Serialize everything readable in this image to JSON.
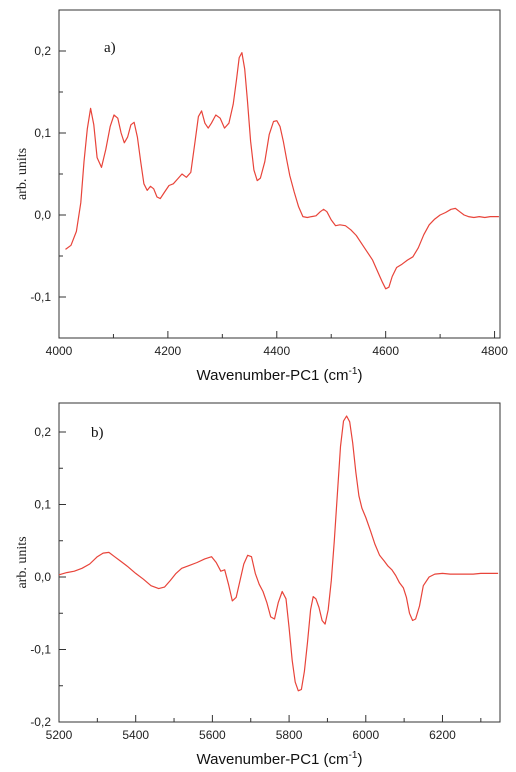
{
  "chart_data": [
    {
      "type": "line",
      "panel_label": "a)",
      "xlabel": "Wavenumber-PC1 (cm",
      "xlabel_sup": "-1",
      "xlabel_suffix": ")",
      "ylabel": "arb. units",
      "xlim": [
        4000,
        4810
      ],
      "ylim": [
        -0.15,
        0.25
      ],
      "xticks": [
        4000,
        4200,
        4400,
        4600,
        4800
      ],
      "yticks": [
        -0.1,
        0.0,
        0.1,
        0.2
      ],
      "ytick_labels": [
        "-0,1",
        "0,0",
        "0,1",
        "0,2"
      ],
      "grid": false,
      "line_color": "#e8443a",
      "x": [
        4012,
        4022,
        4032,
        4040,
        4046,
        4052,
        4058,
        4064,
        4070,
        4078,
        4086,
        4094,
        4101,
        4108,
        4114,
        4120,
        4126,
        4132,
        4138,
        4144,
        4150,
        4156,
        4162,
        4168,
        4174,
        4180,
        4186,
        4194,
        4202,
        4210,
        4218,
        4226,
        4234,
        4242,
        4250,
        4256,
        4262,
        4268,
        4274,
        4280,
        4288,
        4296,
        4304,
        4312,
        4320,
        4326,
        4331,
        4336,
        4341,
        4346,
        4352,
        4358,
        4364,
        4370,
        4378,
        4386,
        4394,
        4400,
        4406,
        4412,
        4418,
        4424,
        4432,
        4440,
        4448,
        4456,
        4464,
        4472,
        4480,
        4486,
        4492,
        4500,
        4508,
        4516,
        4526,
        4536,
        4546,
        4556,
        4566,
        4576,
        4586,
        4594,
        4600,
        4606,
        4612,
        4620,
        4630,
        4640,
        4650,
        4660,
        4670,
        4680,
        4690,
        4700,
        4710,
        4720,
        4728,
        4736,
        4744,
        4752,
        4762,
        4772,
        4782,
        4792,
        4808
      ],
      "y": [
        -0.042,
        -0.037,
        -0.02,
        0.015,
        0.065,
        0.105,
        0.13,
        0.11,
        0.07,
        0.058,
        0.08,
        0.108,
        0.122,
        0.118,
        0.1,
        0.088,
        0.095,
        0.11,
        0.113,
        0.095,
        0.065,
        0.038,
        0.03,
        0.035,
        0.032,
        0.022,
        0.02,
        0.028,
        0.036,
        0.038,
        0.044,
        0.05,
        0.046,
        0.052,
        0.09,
        0.12,
        0.127,
        0.112,
        0.106,
        0.112,
        0.122,
        0.118,
        0.106,
        0.112,
        0.135,
        0.165,
        0.192,
        0.198,
        0.178,
        0.14,
        0.09,
        0.055,
        0.042,
        0.045,
        0.065,
        0.098,
        0.114,
        0.115,
        0.108,
        0.09,
        0.068,
        0.048,
        0.028,
        0.01,
        -0.002,
        -0.003,
        -0.002,
        -0.001,
        0.004,
        0.007,
        0.004,
        -0.006,
        -0.013,
        -0.012,
        -0.013,
        -0.018,
        -0.025,
        -0.035,
        -0.045,
        -0.055,
        -0.07,
        -0.082,
        -0.09,
        -0.088,
        -0.075,
        -0.064,
        -0.06,
        -0.055,
        -0.051,
        -0.04,
        -0.024,
        -0.012,
        -0.005,
        0.0,
        0.003,
        0.007,
        0.008,
        0.004,
        0.0,
        -0.002,
        -0.003,
        -0.002,
        -0.003,
        -0.002,
        -0.002
      ]
    },
    {
      "type": "line",
      "panel_label": "b)",
      "xlabel": "Wavenumber-PC1 (cm",
      "xlabel_sup": "-1",
      "xlabel_suffix": ")",
      "ylabel": "arb. units",
      "xlim": [
        5200,
        6350
      ],
      "ylim": [
        -0.2,
        0.24
      ],
      "xticks": [
        5200,
        5400,
        5600,
        5800,
        6000,
        6200
      ],
      "yticks": [
        -0.2,
        -0.1,
        0.0,
        0.1,
        0.2
      ],
      "ytick_labels": [
        "-0,2",
        "-0,1",
        "0,0",
        "0,1",
        "0,2"
      ],
      "grid": false,
      "line_color": "#e8443a",
      "x": [
        5200,
        5220,
        5240,
        5260,
        5280,
        5300,
        5315,
        5330,
        5345,
        5360,
        5380,
        5400,
        5420,
        5440,
        5460,
        5475,
        5490,
        5505,
        5520,
        5540,
        5560,
        5580,
        5598,
        5610,
        5622,
        5632,
        5642,
        5652,
        5662,
        5672,
        5682,
        5692,
        5702,
        5712,
        5722,
        5732,
        5742,
        5752,
        5762,
        5772,
        5782,
        5792,
        5800,
        5808,
        5816,
        5824,
        5832,
        5840,
        5848,
        5856,
        5863,
        5870,
        5878,
        5886,
        5894,
        5902,
        5910,
        5918,
        5926,
        5934,
        5942,
        5950,
        5958,
        5966,
        5974,
        5982,
        5990,
        6000,
        6012,
        6024,
        6036,
        6048,
        6058,
        6068,
        6078,
        6088,
        6098,
        6106,
        6114,
        6122,
        6130,
        6140,
        6150,
        6165,
        6180,
        6200,
        6220,
        6240,
        6260,
        6280,
        6300,
        6320,
        6345
      ],
      "y": [
        0.003,
        0.006,
        0.008,
        0.012,
        0.018,
        0.028,
        0.033,
        0.034,
        0.028,
        0.022,
        0.014,
        0.005,
        -0.003,
        -0.012,
        -0.016,
        -0.014,
        -0.005,
        0.005,
        0.012,
        0.016,
        0.02,
        0.025,
        0.028,
        0.02,
        0.008,
        0.01,
        -0.01,
        -0.033,
        -0.028,
        -0.005,
        0.018,
        0.03,
        0.028,
        0.005,
        -0.01,
        -0.02,
        -0.035,
        -0.055,
        -0.058,
        -0.035,
        -0.02,
        -0.03,
        -0.07,
        -0.115,
        -0.145,
        -0.157,
        -0.155,
        -0.13,
        -0.09,
        -0.045,
        -0.027,
        -0.03,
        -0.042,
        -0.06,
        -0.065,
        -0.045,
        -0.005,
        0.05,
        0.115,
        0.18,
        0.215,
        0.222,
        0.214,
        0.185,
        0.145,
        0.112,
        0.095,
        0.082,
        0.064,
        0.045,
        0.03,
        0.022,
        0.015,
        0.01,
        0.002,
        -0.008,
        -0.015,
        -0.028,
        -0.05,
        -0.06,
        -0.058,
        -0.04,
        -0.012,
        0.0,
        0.004,
        0.005,
        0.004,
        0.004,
        0.004,
        0.004,
        0.005,
        0.005,
        0.005
      ]
    }
  ]
}
